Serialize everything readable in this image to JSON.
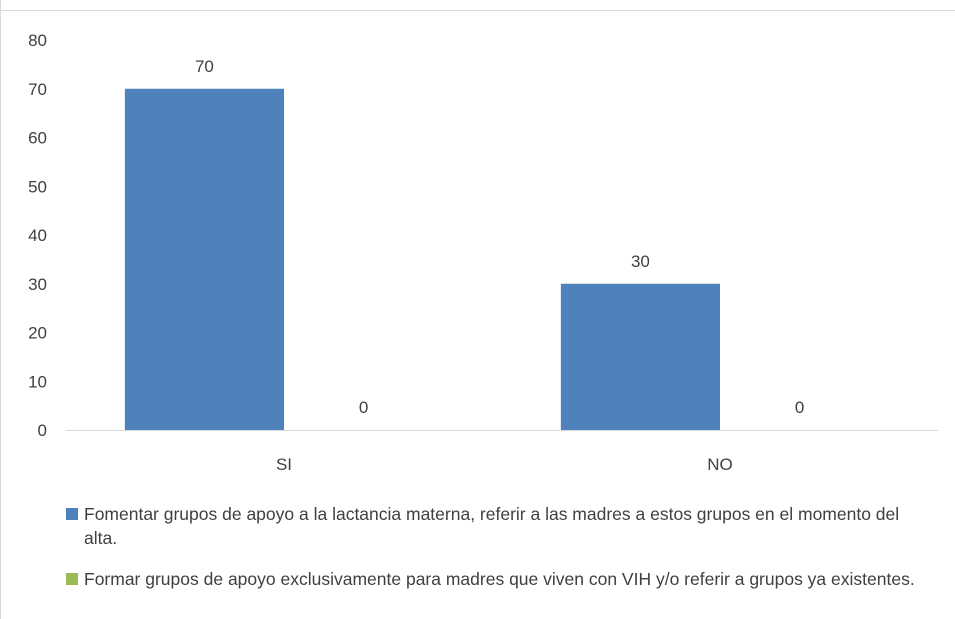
{
  "chart_data": {
    "type": "bar",
    "categories": [
      "SI",
      "NO"
    ],
    "series": [
      {
        "name": "Fomentar grupos de apoyo a la lactancia materna, referir a las madres a estos grupos en el momento del alta.",
        "values": [
          70,
          30
        ],
        "color": "#4f81bd"
      },
      {
        "name": "Formar  grupos de apoyo exclusivamente para madres que viven con VIH y/o referir a grupos ya existentes.",
        "values": [
          0,
          0
        ],
        "color": "#9bbb59"
      }
    ],
    "yticks": [
      "0",
      "10",
      "20",
      "30",
      "40",
      "50",
      "60",
      "70",
      "80"
    ],
    "ylim": [
      0,
      80
    ],
    "grid": false,
    "legend_position": "bottom",
    "data_labels": [
      [
        "70",
        "30"
      ],
      [
        "0",
        "0"
      ]
    ]
  }
}
